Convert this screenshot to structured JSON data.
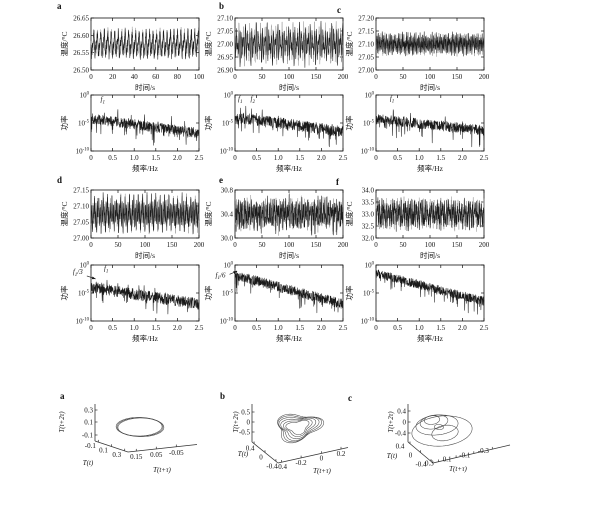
{
  "page": {
    "background": "#ffffff"
  },
  "figure": {
    "line_color": "#1a1a1a",
    "secondary_line_color": "#9a9a9a",
    "attractor_color": "#4a4a4a",
    "panel_letters_top": [
      "a",
      "b",
      "c",
      "d",
      "e",
      "f"
    ],
    "panel_letters_bottom": [
      "a",
      "b",
      "c"
    ]
  },
  "chart_data": [
    {
      "id": "ts-a",
      "panel_label": "a",
      "kind": "timeseries",
      "type": "line",
      "xlabel": "时间/s",
      "ylabel": "温度/°C",
      "xlim": [
        0,
        100
      ],
      "xticks": [
        "0",
        "20",
        "40",
        "60",
        "80",
        "100"
      ],
      "ylim": [
        26.5,
        26.65
      ],
      "yticks": [
        "26.50",
        "26.55",
        "26.60",
        "26.65"
      ],
      "signal": {
        "mean": 26.575,
        "components_hz_amp": [
          [
            0.31,
            0.025
          ],
          [
            0.62,
            0.012
          ]
        ],
        "noise": 0.009,
        "seed": 11
      }
    },
    {
      "id": "sp-a",
      "kind": "spectrum",
      "type": "line",
      "xlabel": "频率/Hz",
      "ylabel": "功率",
      "xlim": [
        0,
        2.5
      ],
      "xticks": [
        "0",
        "0.5",
        "1.0",
        "1.5",
        "2.0",
        "2.5"
      ],
      "ylim_log10": [
        -10,
        0
      ],
      "ytick_exponents": [
        0,
        -5,
        -10
      ],
      "baseline_log10": [
        -4.2,
        -6.8
      ],
      "noise_log10": 0.9,
      "peaks": [
        {
          "f_hz": 0.31,
          "log10_power": -2.6
        },
        {
          "f_hz": 0.62,
          "log10_power": -1.9
        },
        {
          "f_hz": 0.87,
          "log10_power": -3.3
        },
        {
          "f_hz": 0.93,
          "log10_power": -3.5
        },
        {
          "f_hz": 1.24,
          "log10_power": -3.0
        },
        {
          "f_hz": 1.55,
          "log10_power": -4.0
        },
        {
          "f_hz": 1.86,
          "log10_power": -3.6
        },
        {
          "f_hz": 2.17,
          "log10_power": -4.3
        }
      ],
      "annotations": [
        {
          "text": "f₁",
          "f_hz": 0.22,
          "log10_power": -1.2
        }
      ],
      "seed": 12
    },
    {
      "id": "ts-b",
      "panel_label": "b",
      "kind": "timeseries",
      "type": "line",
      "xlabel": "时间/s",
      "ylabel": "温度/°C",
      "xlim": [
        0,
        200
      ],
      "xticks": [
        "0",
        "50",
        "100",
        "150",
        "200"
      ],
      "ylim": [
        26.9,
        27.1
      ],
      "yticks": [
        "26.90",
        "26.95",
        "27.00",
        "27.05",
        "27.10"
      ],
      "signal": {
        "mean": 27.0,
        "components_hz_amp": [
          [
            0.25,
            0.034
          ],
          [
            0.35,
            0.03
          ],
          [
            0.05,
            0.012
          ]
        ],
        "noise": 0.011,
        "seed": 21
      }
    },
    {
      "id": "sp-b",
      "kind": "spectrum",
      "type": "line",
      "xlabel": "频率/Hz",
      "ylabel": "功率",
      "xlim": [
        0,
        2.5
      ],
      "xticks": [
        "0",
        "0.5",
        "1.0",
        "1.5",
        "2.0",
        "2.5"
      ],
      "ylim_log10": [
        -10,
        0
      ],
      "ytick_exponents": [
        0,
        -5,
        -10
      ],
      "baseline_log10": [
        -4.0,
        -6.5
      ],
      "noise_log10": 1.0,
      "peaks": [
        {
          "f_hz": 0.13,
          "log10_power": -2.2
        },
        {
          "f_hz": 0.25,
          "log10_power": -1.8
        },
        {
          "f_hz": 0.38,
          "log10_power": -2.4
        },
        {
          "f_hz": 0.5,
          "log10_power": -2.9
        },
        {
          "f_hz": 0.63,
          "log10_power": -2.4
        },
        {
          "f_hz": 0.75,
          "log10_power": -3.3
        },
        {
          "f_hz": 1.0,
          "log10_power": -3.0
        },
        {
          "f_hz": 1.13,
          "log10_power": -3.5
        },
        {
          "f_hz": 1.5,
          "log10_power": -3.8
        },
        {
          "f_hz": 1.88,
          "log10_power": -4.2
        }
      ],
      "annotations": [
        {
          "text": "f₁",
          "f_hz": 0.07,
          "log10_power": -1.1
        },
        {
          "text": "f₂",
          "f_hz": 0.36,
          "log10_power": -1.1
        }
      ],
      "seed": 22
    },
    {
      "id": "ts-c",
      "panel_label": "c",
      "kind": "timeseries",
      "type": "line",
      "xlabel": "时间/s",
      "ylabel": "温度/°C",
      "xlim": [
        0,
        200
      ],
      "xticks": [
        "0",
        "50",
        "100",
        "150",
        "200"
      ],
      "ylim": [
        27.0,
        27.2
      ],
      "yticks": [
        "27.00",
        "27.05",
        "27.10",
        "27.15",
        "27.20"
      ],
      "signal": {
        "mean": 27.1,
        "components_hz_amp": [
          [
            0.4,
            0.022
          ],
          [
            0.8,
            0.009
          ],
          [
            0.13,
            0.007
          ]
        ],
        "noise": 0.011,
        "seed": 31
      }
    },
    {
      "id": "sp-c",
      "kind": "spectrum",
      "type": "line",
      "xlabel": "频率/Hz",
      "ylabel": "功率",
      "xlim": [
        0,
        2.5
      ],
      "xticks": [
        "0",
        "0.5",
        "1.0",
        "1.5",
        "2.0",
        "2.5"
      ],
      "ylim_log10": [
        -10,
        0
      ],
      "ytick_exponents": [
        0,
        -5,
        -10
      ],
      "baseline_log10": [
        -4.3,
        -6.3
      ],
      "noise_log10": 0.9,
      "peaks": [
        {
          "f_hz": 0.4,
          "log10_power": -1.8
        },
        {
          "f_hz": 0.65,
          "log10_power": -3.2
        },
        {
          "f_hz": 0.8,
          "log10_power": -3.0
        },
        {
          "f_hz": 0.95,
          "log10_power": -3.6
        },
        {
          "f_hz": 1.2,
          "log10_power": -3.9
        },
        {
          "f_hz": 1.6,
          "log10_power": -3.4
        },
        {
          "f_hz": 2.0,
          "log10_power": -4.4
        }
      ],
      "annotations": [
        {
          "text": "f₁",
          "f_hz": 0.32,
          "log10_power": -1.0
        }
      ],
      "seed": 32
    },
    {
      "id": "ts-d",
      "panel_label": "d",
      "kind": "timeseries",
      "type": "line",
      "xlabel": "时间/s",
      "ylabel": "温度/°C",
      "xlim": [
        0,
        200
      ],
      "xticks": [
        "0",
        "50",
        "100",
        "150",
        "200"
      ],
      "ylim": [
        27.0,
        27.15
      ],
      "yticks": [
        "27.00",
        "27.05",
        "27.10",
        "27.15"
      ],
      "signal": {
        "mean": 27.075,
        "components_hz_amp": [
          [
            0.37,
            0.03
          ],
          [
            0.123,
            0.018
          ],
          [
            0.74,
            0.008
          ]
        ],
        "noise": 0.011,
        "seed": 41
      }
    },
    {
      "id": "sp-d",
      "kind": "spectrum",
      "type": "line",
      "xlabel": "频率/Hz",
      "ylabel": "功率",
      "xlim": [
        0,
        2.5
      ],
      "xticks": [
        "0",
        "0.5",
        "1.0",
        "1.5",
        "2.0",
        "2.5"
      ],
      "ylim_log10": [
        -10,
        0
      ],
      "ytick_exponents": [
        0,
        -5,
        -10
      ],
      "baseline_log10": [
        -4.0,
        -7.0
      ],
      "noise_log10": 1.0,
      "peaks": [
        {
          "f_hz": 0.12,
          "log10_power": -2.7
        },
        {
          "f_hz": 0.25,
          "log10_power": -3.0
        },
        {
          "f_hz": 0.37,
          "log10_power": -2.2
        },
        {
          "f_hz": 0.49,
          "log10_power": -3.2
        },
        {
          "f_hz": 0.62,
          "log10_power": -2.6
        },
        {
          "f_hz": 0.74,
          "log10_power": -3.4
        },
        {
          "f_hz": 0.86,
          "log10_power": -3.0
        },
        {
          "f_hz": 1.11,
          "log10_power": -3.3
        },
        {
          "f_hz": 1.23,
          "log10_power": -3.6
        },
        {
          "f_hz": 1.48,
          "log10_power": -4.0
        },
        {
          "f_hz": 1.72,
          "log10_power": -4.2
        }
      ],
      "annotations": [
        {
          "text": "f₁/3",
          "f_hz": -0.42,
          "log10_power": -1.6,
          "arrow_to": {
            "f_hz": 0.11,
            "log10_power": -2.5
          }
        },
        {
          "text": "f₁",
          "f_hz": 0.3,
          "log10_power": -1.0
        }
      ],
      "seed": 42
    },
    {
      "id": "ts-e",
      "panel_label": "e",
      "kind": "timeseries",
      "type": "line",
      "xlabel": "时间/s",
      "ylabel": "温度/°C",
      "xlim": [
        0,
        200
      ],
      "xticks": [
        "0",
        "50",
        "100",
        "150",
        "200"
      ],
      "ylim": [
        30.0,
        30.8
      ],
      "yticks": [
        "30.0",
        "30.4",
        "30.8"
      ],
      "signal": {
        "mean": 30.4,
        "components_hz_amp": [
          [
            0.3,
            0.12
          ],
          [
            0.47,
            0.08
          ],
          [
            0.15,
            0.06
          ],
          [
            0.8,
            0.05
          ]
        ],
        "noise": 0.06,
        "seed": 51
      }
    },
    {
      "id": "sp-e",
      "kind": "spectrum",
      "type": "line",
      "xlabel": "频率/Hz",
      "ylabel": "功率",
      "xlim": [
        0,
        2.5
      ],
      "xticks": [
        "0",
        "0.5",
        "1.0",
        "1.5",
        "2.0",
        "2.5"
      ],
      "ylim_log10": [
        -10,
        0
      ],
      "ytick_exponents": [
        0,
        -5,
        -10
      ],
      "baseline_log10": [
        -1.8,
        -7.0
      ],
      "noise_log10": 0.9,
      "peaks": [
        {
          "f_hz": 0.06,
          "log10_power": -1.2
        }
      ],
      "annotations": [
        {
          "text": "f₁/6",
          "f_hz": -0.45,
          "log10_power": -2.2,
          "arrow_to": {
            "f_hz": 0.05,
            "log10_power": -1.1
          }
        }
      ],
      "seed": 52
    },
    {
      "id": "ts-f",
      "panel_label": "f",
      "kind": "timeseries",
      "type": "line",
      "xlabel": "时间/s",
      "ylabel": "温度/°C",
      "xlim": [
        0,
        200
      ],
      "xticks": [
        "0",
        "50",
        "100",
        "150",
        "200"
      ],
      "ylim": [
        32.0,
        34.0
      ],
      "yticks": [
        "32.0",
        "32.5",
        "33.0",
        "33.5",
        "34.0"
      ],
      "signal": {
        "mean": 33.0,
        "components_hz_amp": [
          [
            0.25,
            0.25
          ],
          [
            0.4,
            0.18
          ],
          [
            0.1,
            0.12
          ],
          [
            0.7,
            0.08
          ]
        ],
        "noise": 0.2,
        "seed": 61
      }
    },
    {
      "id": "sp-f",
      "kind": "spectrum",
      "type": "line",
      "xlabel": "频率/Hz",
      "ylabel": "功率",
      "xlim": [
        0,
        2.5
      ],
      "xticks": [
        "0",
        "0.5",
        "1.0",
        "1.5",
        "2.0",
        "2.5"
      ],
      "ylim_log10": [
        -10,
        0
      ],
      "ytick_exponents": [
        0,
        -5,
        -10
      ],
      "baseline_log10": [
        -1.5,
        -6.5
      ],
      "noise_log10": 0.8,
      "peaks": [],
      "annotations": [],
      "seed": 62
    },
    {
      "id": "attr-a",
      "panel_label": "a",
      "kind": "attractor3d",
      "type": "line",
      "xlabel": "T(t)",
      "ylabel": "T(t+τ)",
      "zlabel": "T(t+2τ)",
      "xticks": [
        "-0.1",
        "0.1",
        "0.3"
      ],
      "yticks": [
        "0.15",
        "0.05",
        "-0.05"
      ],
      "zticks": [
        "0.3",
        "0.1",
        "-0.1"
      ],
      "attractor": "limit-cycle"
    },
    {
      "id": "attr-b",
      "panel_label": "b",
      "kind": "attractor3d",
      "type": "line",
      "xlabel": "T(t)",
      "ylabel": "T(t+τ)",
      "zlabel": "T(t+2τ)",
      "xticks": [
        "0.4",
        "0",
        "-0.4"
      ],
      "yticks": [
        "-0.4",
        "-0.2",
        "0",
        "0.2"
      ],
      "zticks": [
        "0.5",
        "0",
        "-0.5"
      ],
      "attractor": "torus"
    },
    {
      "id": "attr-c",
      "panel_label": "c",
      "kind": "attractor3d",
      "type": "line",
      "xlabel": "T(t)",
      "ylabel": "T(t+τ)",
      "zlabel": "T(t+2τ)",
      "xticks": [
        "0.4",
        "0",
        "-0.4"
      ],
      "yticks": [
        "0.3",
        "0.1",
        "-0.1",
        "-0.3"
      ],
      "zticks": [
        "0.4",
        "0",
        "-0.4"
      ],
      "attractor": "chaotic"
    }
  ]
}
